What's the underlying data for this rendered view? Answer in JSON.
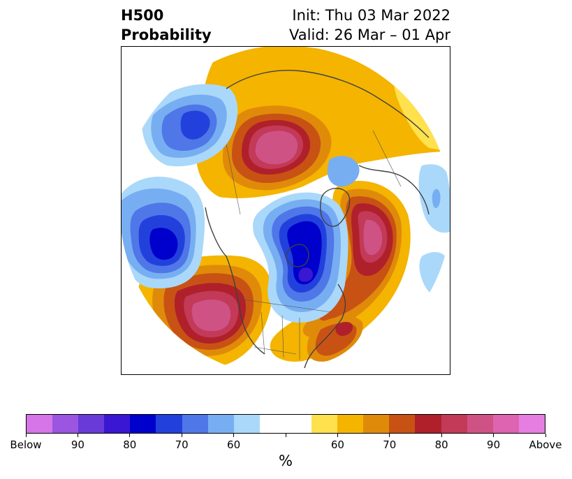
{
  "title": {
    "left": [
      "H500",
      "Probability"
    ],
    "right": [
      "Init: Thu 03 Mar 2022",
      "Valid: 26 Mar – 01 Apr"
    ]
  },
  "map": {
    "projection": "north-polar-stereographic",
    "field": "500 hPa height anomaly probability",
    "anomalies": [
      {
        "region": "Eastern Pacific (south of Aleutians)",
        "sign": "below",
        "max_category": "80-90"
      },
      {
        "region": "Alaska / Bering Sea",
        "sign": "below",
        "max_category": "70-80"
      },
      {
        "region": "Canadian Arctic / Hudson Bay",
        "sign": "below",
        "max_category": "80-90"
      },
      {
        "region": "Siberia / Arctic Ocean",
        "sign": "above",
        "max_category": "80-90"
      },
      {
        "region": "Western United States / NE Pacific",
        "sign": "above",
        "max_category": "80-90"
      },
      {
        "region": "North Atlantic",
        "sign": "above",
        "max_category": "80-90"
      },
      {
        "region": "Southeastern United States / W Atlantic",
        "sign": "above",
        "max_category": "70-80"
      },
      {
        "region": "Europe / NW Russia",
        "sign": "above",
        "max_category": "60-70"
      }
    ]
  },
  "colorbar": {
    "colors": [
      "#d575e8",
      "#9b55e0",
      "#6a3ad8",
      "#3a17d2",
      "#0000cc",
      "#2241dc",
      "#4f77e8",
      "#77aef2",
      "#aad8fa",
      "#ffffff",
      "#ffffff",
      "#ffe14d",
      "#f4b400",
      "#e08a0a",
      "#c85214",
      "#b0202a",
      "#c23a58",
      "#cf5285",
      "#de63b0",
      "#e57ee0"
    ],
    "tick_labels": [
      "Below",
      "90",
      "80",
      "70",
      "60",
      "",
      "60",
      "70",
      "80",
      "90",
      "Above"
    ],
    "unit": "%"
  }
}
